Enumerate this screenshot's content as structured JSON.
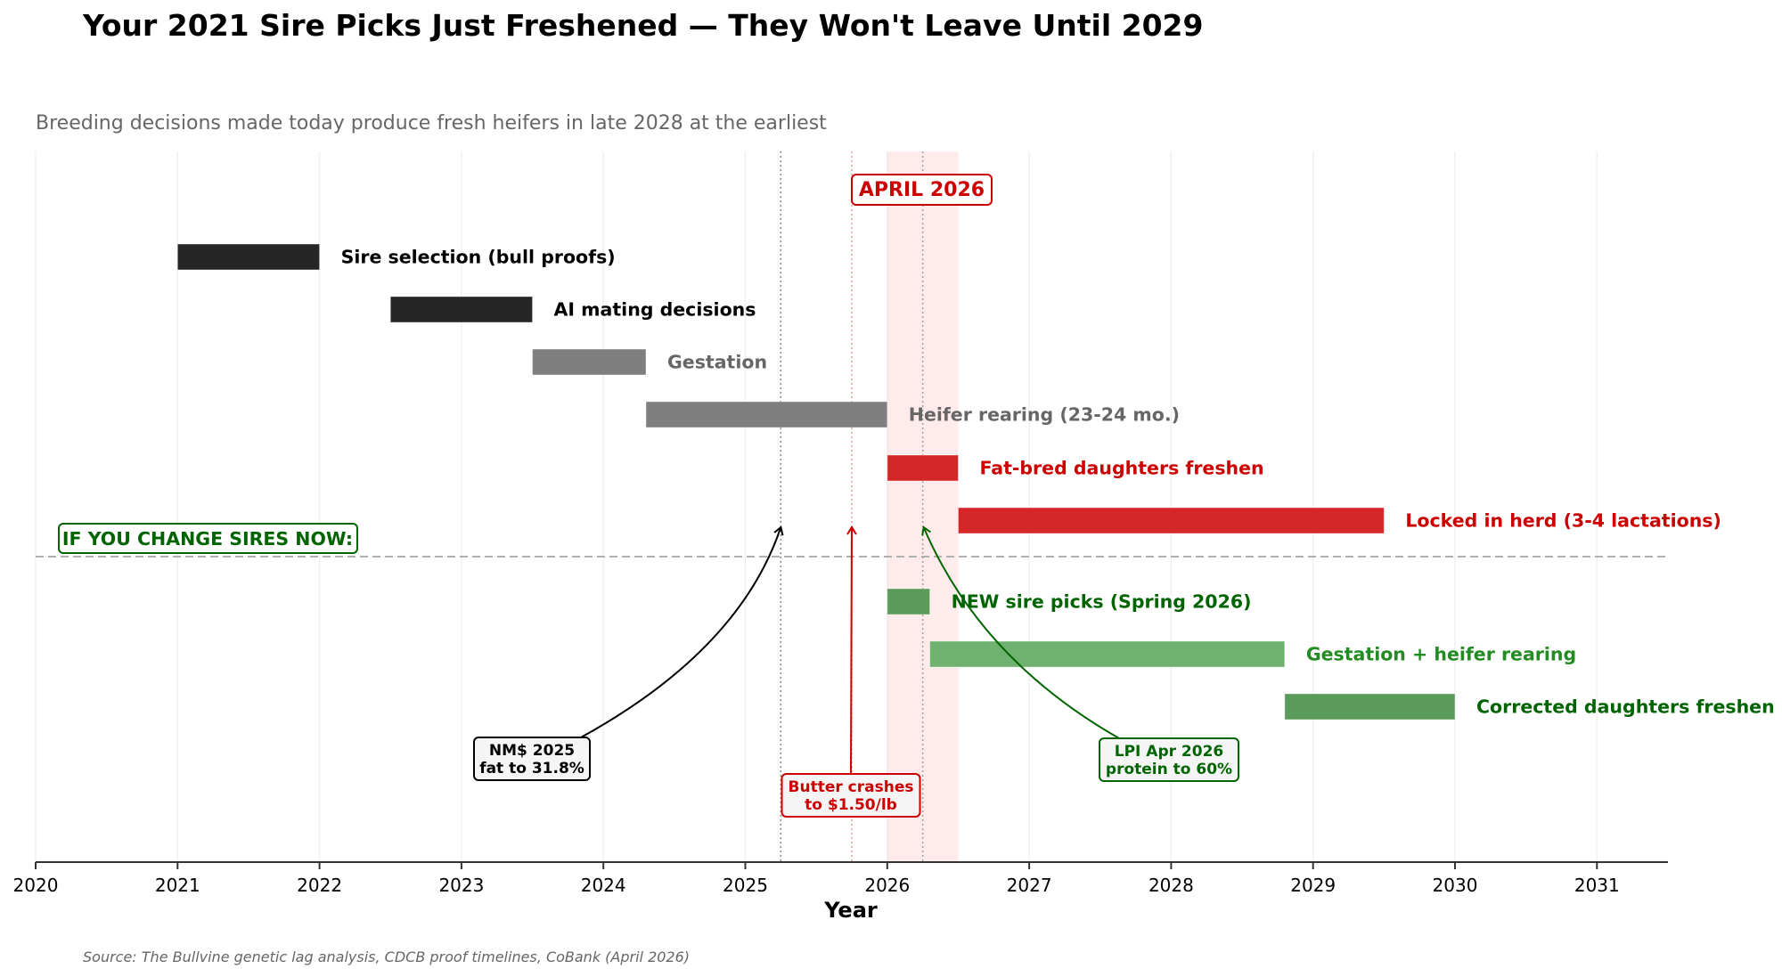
{
  "chart_data": {
    "type": "gantt",
    "title": "Your 2021 Sire Picks Just Freshened — They Won't Leave Until 2029",
    "subtitle": "Breeding decisions made today produce fresh heifers in late 2028 at the earliest",
    "xlabel": "Year",
    "xlim": [
      2020,
      2031.5
    ],
    "xticks": [
      "2020",
      "2021",
      "2022",
      "2023",
      "2024",
      "2025",
      "2026",
      "2027",
      "2028",
      "2029",
      "2030",
      "2031"
    ],
    "grid": "vertical",
    "source": "Source: The Bullvine genetic lag analysis, CDCB proof timelines, CoBank (April 2026)",
    "highlight_band": {
      "start": 2026.0,
      "end": 2026.5,
      "label": "APRIL 2026",
      "color": "#ffcccc"
    },
    "divider_label": "IF YOU CHANGE SIRES NOW:",
    "bars": [
      {
        "label": "Sire selection (bull proofs)",
        "start": 2021.0,
        "end": 2022.0,
        "color": "#262626",
        "label_color": "#000000",
        "group": "current"
      },
      {
        "label": "AI mating decisions",
        "start": 2022.5,
        "end": 2023.5,
        "color": "#262626",
        "label_color": "#000000",
        "group": "current"
      },
      {
        "label": "Gestation",
        "start": 2023.5,
        "end": 2024.3,
        "color": "#7f7f7f",
        "label_color": "#666666",
        "group": "current"
      },
      {
        "label": "Heifer rearing (23-24 mo.)",
        "start": 2024.3,
        "end": 2026.0,
        "color": "#7f7f7f",
        "label_color": "#666666",
        "group": "current"
      },
      {
        "label": "Fat-bred daughters freshen",
        "start": 2026.0,
        "end": 2026.5,
        "color": "#d62728",
        "label_color": "#cc0000",
        "group": "current"
      },
      {
        "label": "Locked in herd (3-4 lactations)",
        "start": 2026.5,
        "end": 2029.5,
        "color": "#d62728",
        "label_color": "#cc0000",
        "group": "current"
      },
      {
        "label": "NEW sire picks (Spring 2026)",
        "start": 2026.0,
        "end": 2026.3,
        "color": "#5a9a5a",
        "label_color": "#006400",
        "group": "new"
      },
      {
        "label": "Gestation + heifer rearing",
        "start": 2026.3,
        "end": 2028.8,
        "color": "#6fb26f",
        "label_color": "#228b22",
        "group": "new"
      },
      {
        "label": "Corrected daughters freshen",
        "start": 2028.8,
        "end": 2030.0,
        "color": "#5a9a5a",
        "label_color": "#006400",
        "group": "new"
      }
    ],
    "annotations": [
      {
        "lines": [
          "NM$ 2025",
          "fat to 31.8%"
        ],
        "x": 2025.25,
        "color": "#000000",
        "line_style": "dotted"
      },
      {
        "lines": [
          "Butter crashes",
          "to $1.50/lb"
        ],
        "x": 2025.75,
        "color": "#cc0000",
        "line_style": "dotted"
      },
      {
        "lines": [
          "LPI Apr 2026",
          "protein to 60%"
        ],
        "x": 2026.25,
        "color": "#006400",
        "line_style": "dotted"
      }
    ]
  }
}
